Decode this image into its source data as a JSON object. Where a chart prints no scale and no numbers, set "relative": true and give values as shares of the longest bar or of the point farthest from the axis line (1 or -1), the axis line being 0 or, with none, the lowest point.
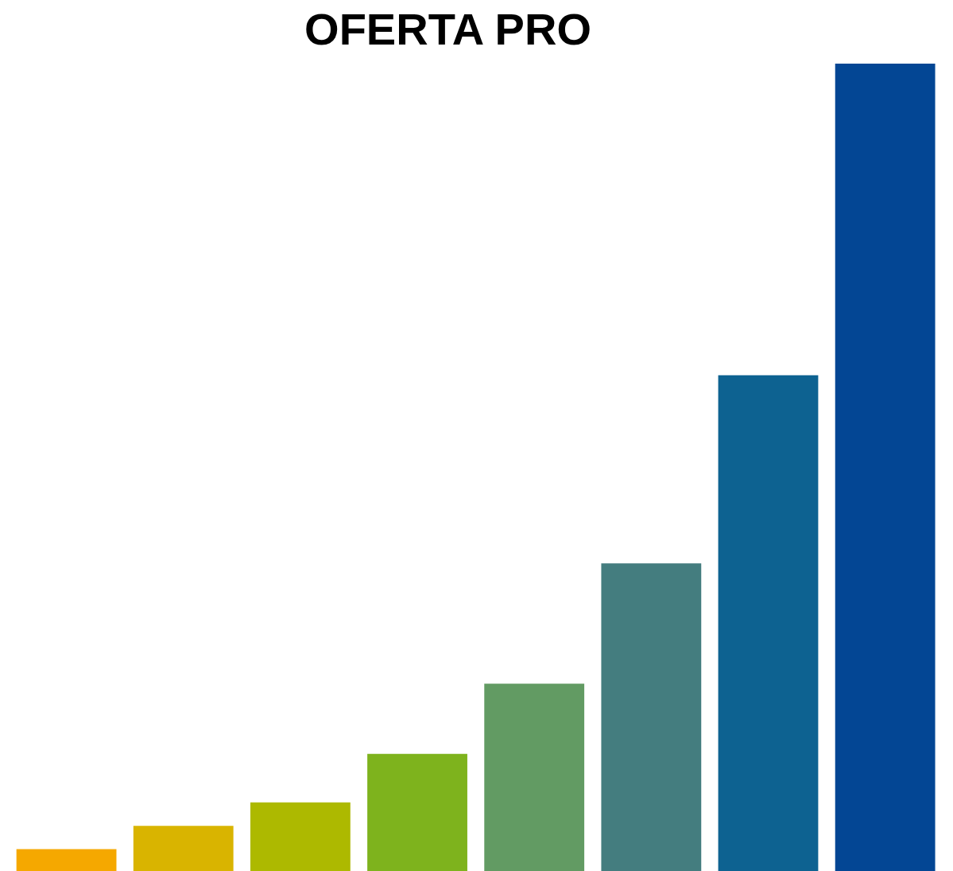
{
  "chart_data": {
    "type": "bar",
    "title": "OFERTA PRO",
    "relative": true,
    "categories": [
      null,
      null,
      null,
      null,
      null,
      null,
      null,
      null
    ],
    "values": [
      0.027,
      0.056,
      0.085,
      0.145,
      0.232,
      0.381,
      0.614,
      1
    ],
    "colors": [
      "#f5a800",
      "#d9b400",
      "#adb900",
      "#7eb31d",
      "#629b63",
      "#447d7f",
      "#0d6291",
      "#034694"
    ]
  }
}
